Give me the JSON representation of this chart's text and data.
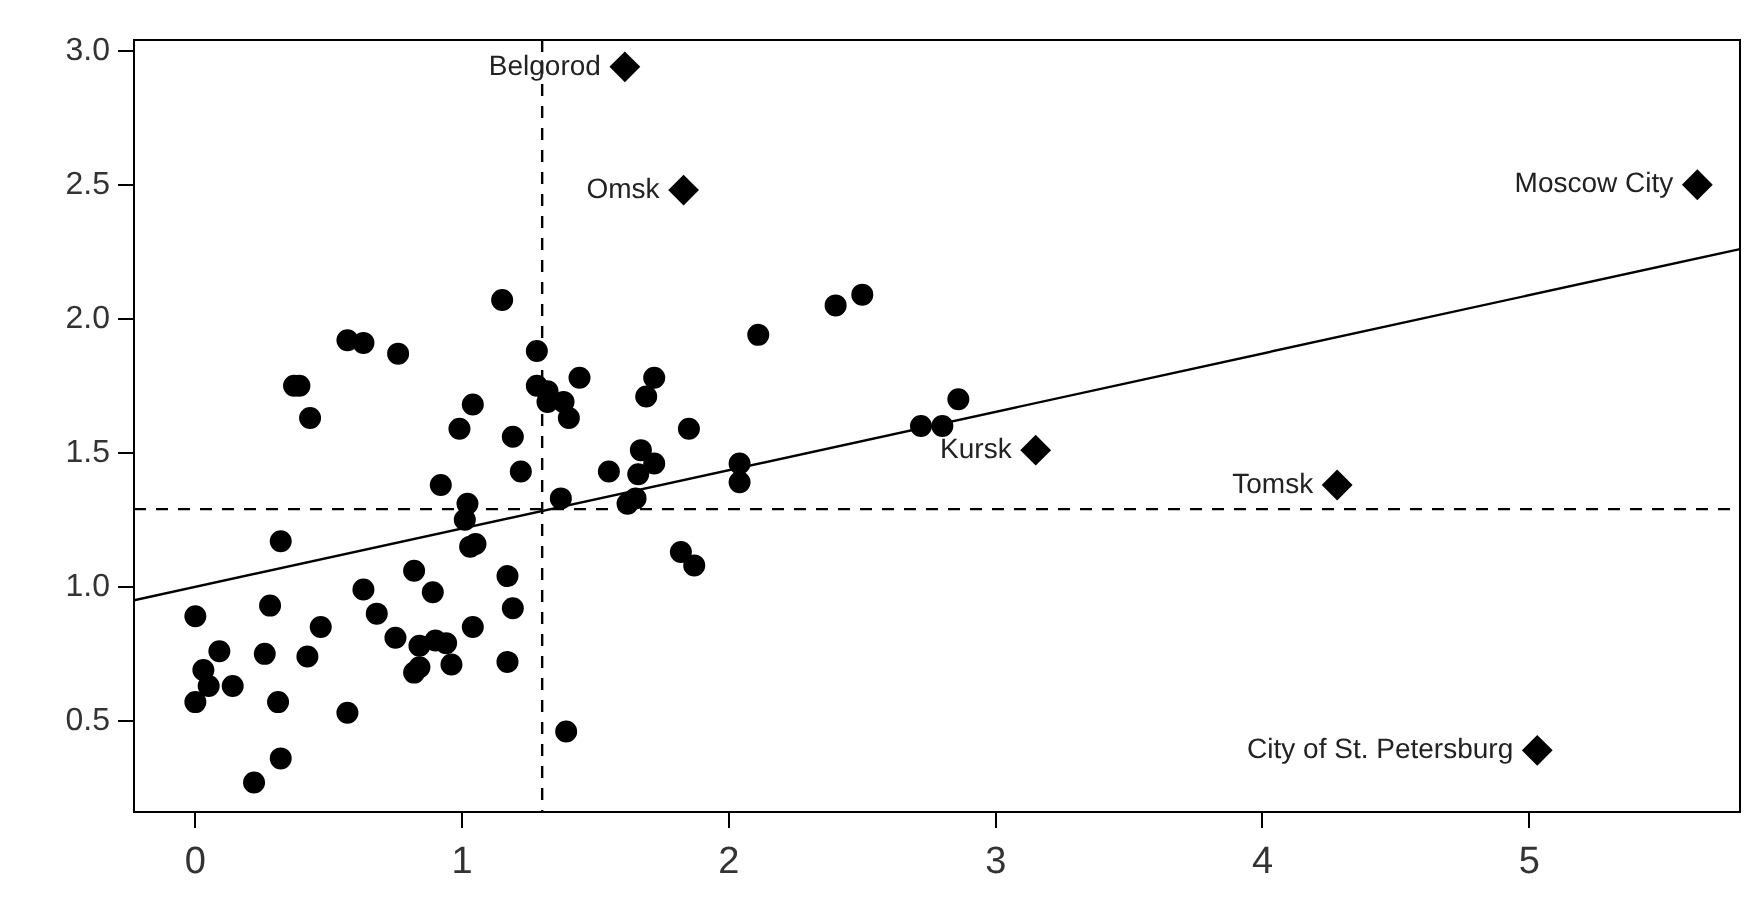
{
  "chart_data": {
    "type": "scatter",
    "xlim": [
      -0.23,
      5.79
    ],
    "ylim": [
      0.16,
      3.04
    ],
    "xticks": [
      0,
      1,
      2,
      3,
      4,
      5
    ],
    "yticks": [
      {
        "value": 0.5,
        "label": "0.5"
      },
      {
        "value": 1,
        "label": "1.0"
      },
      {
        "value": 1.5,
        "label": "1.5"
      },
      {
        "value": 2,
        "label": "2.0"
      },
      {
        "value": 2.5,
        "label": "2.5"
      },
      {
        "value": 3,
        "label": "3.0"
      }
    ],
    "grid": false,
    "legend": false,
    "series": [
      {
        "color": "#000000",
        "marker": "circle",
        "x": [
          0,
          0,
          0.03,
          0.05,
          0.09,
          0.14,
          0.22,
          0.26,
          0.28,
          0.31,
          0.32,
          0.32,
          0.37,
          0.39,
          0.43,
          0.42,
          0.47,
          0.57,
          0.57,
          0.63,
          0.63,
          0.68,
          0.75,
          0.76,
          0.82,
          0.84,
          0.84,
          0.82,
          0.89,
          0.9,
          0.94,
          0.96,
          0.92,
          0.99,
          1.04,
          1.02,
          1.01,
          1.03,
          1.05,
          1.04,
          1.15,
          1.17,
          1.19,
          1.17,
          1.19,
          1.22,
          1.28,
          1.28,
          1.32,
          1.32,
          1.38,
          1.4,
          1.44,
          1.37,
          1.39,
          1.55,
          1.62,
          1.65,
          1.66,
          1.67,
          1.69,
          1.72,
          1.72,
          1.82,
          1.87,
          1.85,
          2.04,
          2.04,
          2.11,
          2.4,
          2.5,
          2.72,
          2.8,
          2.86
        ],
        "values": [
          0.89,
          0.57,
          0.69,
          0.63,
          0.76,
          0.63,
          0.27,
          0.75,
          0.93,
          0.57,
          0.36,
          1.17,
          1.75,
          1.75,
          1.63,
          0.74,
          0.85,
          1.92,
          0.53,
          1.91,
          0.99,
          0.9,
          0.81,
          1.87,
          1.06,
          0.78,
          0.7,
          0.68,
          0.98,
          0.8,
          0.79,
          0.71,
          1.38,
          1.59,
          1.68,
          1.31,
          1.25,
          1.15,
          1.16,
          0.85,
          2.07,
          1.04,
          0.92,
          0.72,
          1.56,
          1.43,
          1.88,
          1.75,
          1.73,
          1.69,
          1.69,
          1.63,
          1.78,
          1.33,
          0.46,
          1.43,
          1.31,
          1.33,
          1.42,
          1.51,
          1.71,
          1.78,
          1.46,
          1.13,
          1.08,
          1.59,
          1.46,
          1.39,
          1.94,
          2.05,
          2.09,
          1.6,
          1.6,
          1.7
        ]
      },
      {
        "color": "#000000",
        "marker": "diamond",
        "x": [
          1.61,
          1.83,
          5.63,
          3.15,
          4.28,
          5.03
        ],
        "values": [
          2.94,
          2.48,
          2.5,
          1.51,
          1.38,
          0.39
        ]
      },
      {
        "type": "line",
        "color": "#000000",
        "marker": "none",
        "line_style": "solid",
        "x": [
          -0.23,
          5.79
        ],
        "values": [
          0.95,
          2.26
        ]
      }
    ],
    "ref_lines": [
      {
        "axis": "x",
        "value": 1.3,
        "line_style": "dashed"
      },
      {
        "axis": "y",
        "value": 1.29,
        "line_style": "dashed"
      }
    ],
    "annotations": [
      {
        "text": "Belgorod",
        "x": 1.61,
        "y": 2.94
      },
      {
        "text": "Omsk",
        "x": 1.83,
        "y": 2.48
      },
      {
        "text": "Moscow City",
        "x": 5.63,
        "y": 2.5
      },
      {
        "text": "Kursk",
        "x": 3.15,
        "y": 1.51
      },
      {
        "text": "Tomsk",
        "x": 4.28,
        "y": 1.38
      },
      {
        "text": "City of St. Petersburg",
        "x": 5.03,
        "y": 0.39
      }
    ]
  }
}
